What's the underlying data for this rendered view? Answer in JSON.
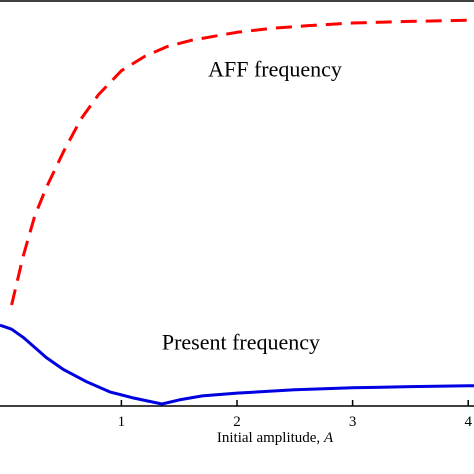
{
  "chart_data": {
    "type": "line",
    "title": "",
    "xlabel_prefix": "Initial amplitude, ",
    "xlabel_var": "A",
    "ylabel": "",
    "xlim": [
      -0.05,
      4.05
    ],
    "ylim": [
      0,
      1
    ],
    "x_ticks": [
      1,
      2,
      3,
      4
    ],
    "x_tick_labels": [
      "1",
      "2",
      "3",
      "4"
    ],
    "grid": false,
    "legend": "none",
    "series": [
      {
        "name": "AFF frequency",
        "color": "#ff0000",
        "style": "dashed",
        "x": [
          0.05,
          0.15,
          0.25,
          0.35,
          0.5,
          0.65,
          0.8,
          1.0,
          1.2,
          1.4,
          1.6,
          1.8,
          2.0,
          2.3,
          2.6,
          3.0,
          3.5,
          4.0,
          4.05
        ],
        "y": [
          0.25,
          0.37,
          0.47,
          0.54,
          0.63,
          0.71,
          0.77,
          0.83,
          0.865,
          0.89,
          0.905,
          0.915,
          0.925,
          0.935,
          0.941,
          0.948,
          0.952,
          0.955,
          0.955
        ]
      },
      {
        "name": "Present frequency",
        "color": "#0000e0",
        "style": "solid",
        "x": [
          -0.05,
          0.05,
          0.15,
          0.25,
          0.35,
          0.5,
          0.7,
          0.9,
          1.1,
          1.35,
          1.5,
          1.7,
          2.0,
          2.5,
          3.0,
          3.5,
          4.0,
          4.05
        ],
        "y": [
          0.2,
          0.19,
          0.17,
          0.145,
          0.12,
          0.09,
          0.06,
          0.035,
          0.02,
          0.005,
          0.015,
          0.025,
          0.032,
          0.04,
          0.045,
          0.048,
          0.05,
          0.05
        ]
      }
    ],
    "annotations": [
      {
        "text": "AFF frequency",
        "x": 1.75,
        "y": 0.815
      },
      {
        "text": "Present frequency",
        "x": 1.35,
        "y": 0.14
      }
    ]
  }
}
